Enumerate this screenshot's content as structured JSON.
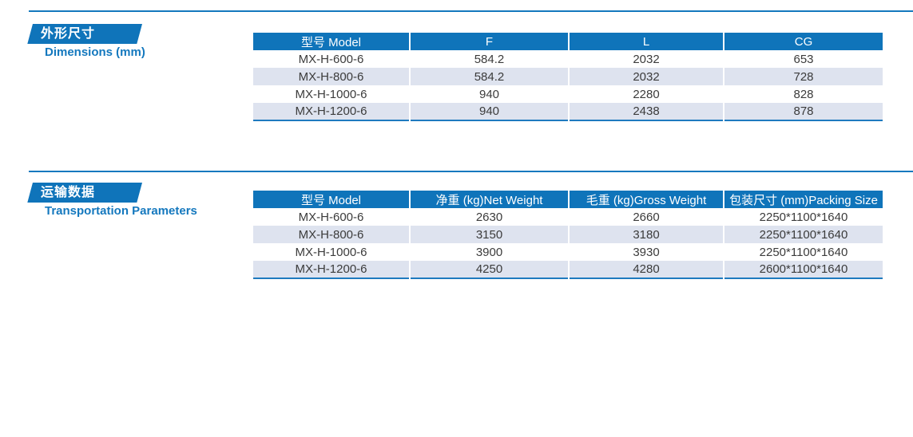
{
  "theme": {
    "primary_blue": "#0f74ba",
    "rule_blue": "#1478be",
    "alt_row_blue": "#dee3ef",
    "text_dark": "#3b3b3b",
    "header_text": "#ffffff"
  },
  "sections": [
    {
      "badge_cn": "外形尺寸",
      "badge_en": "Dimensions (mm)",
      "table": {
        "headers": [
          "型号 Model",
          "F",
          "L",
          "CG"
        ],
        "rows": [
          [
            "MX-H-600-6",
            "584.2",
            "2032",
            "653"
          ],
          [
            "MX-H-800-6",
            "584.2",
            "2032",
            "728"
          ],
          [
            "MX-H-1000-6",
            "940",
            "2280",
            "828"
          ],
          [
            "MX-H-1200-6",
            "940",
            "2438",
            "878"
          ]
        ]
      }
    },
    {
      "badge_cn": "运输数据",
      "badge_en": "Transportation Parameters",
      "table": {
        "headers": [
          "型号 Model",
          "净重 (kg)Net Weight",
          "毛重 (kg)Gross Weight",
          "包装尺寸 (mm)Packing Size"
        ],
        "rows": [
          [
            "MX-H-600-6",
            "2630",
            "2660",
            "2250*1100*1640"
          ],
          [
            "MX-H-800-6",
            "3150",
            "3180",
            "2250*1100*1640"
          ],
          [
            "MX-H-1000-6",
            "3900",
            "3930",
            "2250*1100*1640"
          ],
          [
            "MX-H-1200-6",
            "4250",
            "4280",
            "2600*1100*1640"
          ]
        ]
      }
    }
  ]
}
